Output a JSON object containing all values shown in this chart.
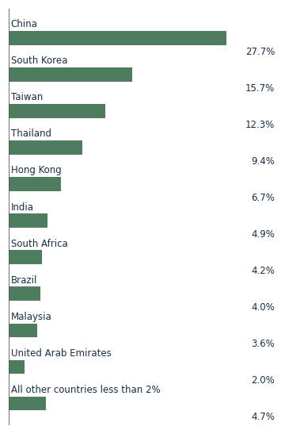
{
  "categories": [
    "China",
    "South Korea",
    "Taiwan",
    "Thailand",
    "Hong Kong",
    "India",
    "South Africa",
    "Brazil",
    "Malaysia",
    "United Arab Emirates",
    "All other countries less than 2%"
  ],
  "values": [
    27.7,
    15.7,
    12.3,
    9.4,
    6.7,
    4.9,
    4.2,
    4.0,
    3.6,
    2.0,
    4.7
  ],
  "bar_color": "#4f7c5f",
  "label_color": "#1a2e44",
  "value_color": "#1a2e44",
  "background_color": "#ffffff",
  "bar_height": 0.38,
  "xlim_data": 30.0,
  "xlim_total": 34.0,
  "label_fontsize": 8.5,
  "value_fontsize": 8.5,
  "left_spine_color": "#555555"
}
